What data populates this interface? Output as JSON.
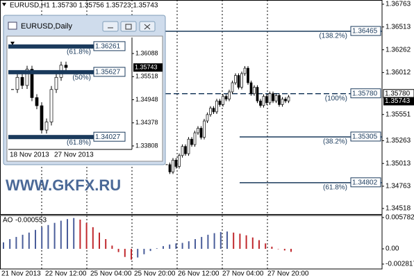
{
  "chart_data": [
    {
      "type": "candlestick",
      "title": "EURUSD,H1 1.35730 1.35756 1.35723 1.35743",
      "values": [
        1.35,
        1.3492,
        1.3505,
        1.3498,
        1.351,
        1.352,
        1.3512,
        1.3528,
        1.3522,
        1.3535,
        1.354,
        1.353,
        1.3548,
        1.3555,
        1.3562,
        1.3558,
        1.357,
        1.3566,
        1.3575,
        1.3572,
        1.358,
        1.359,
        1.3598,
        1.3585,
        1.36,
        1.3606,
        1.359,
        1.3578,
        1.3585,
        1.357,
        1.3565,
        1.3575,
        1.3568,
        1.3578,
        1.357,
        1.3576,
        1.3566,
        1.3572,
        1.357,
        1.35743
      ],
      "ylim": [
        1.34457,
        1.36809
      ],
      "yticks": [
        1.36763,
        1.36513,
        1.36262,
        1.36012,
        1.35551,
        1.35263,
        1.35013,
        1.34763,
        1.34518
      ],
      "levels": [
        {
          "value": 1.36465,
          "pct": "(138.2%)"
        },
        {
          "value": {
            "value": 1.3578,
            "label": "1.35780"
          },
          "pct": "(100%)"
        },
        {
          "value": 1.35305,
          "pct": "(38.2%)"
        },
        {
          "value": 1.34802,
          "pct": "(61.8%)"
        }
      ],
      "current": 1.35743,
      "x_labels": [
        "21 Nov 2013",
        "22 Nov 12:00",
        "25 Nov 04:00",
        "25 Nov 20:00",
        "26 Nov 12:00",
        "27 Nov 04:00",
        "27 Nov 20:00"
      ],
      "color": "#000000",
      "watermark": "WWW.GKFX.RU"
    },
    {
      "type": "bar",
      "title": "AO",
      "current": -0.000553,
      "values": [
        0.0012,
        0.0018,
        0.0022,
        0.0026,
        0.003,
        0.0035,
        0.004,
        0.0044,
        0.0048,
        0.0052,
        0.0055,
        0.0057,
        0.0054,
        0.0048,
        0.004,
        0.003,
        0.0018,
        0.0006,
        -0.0006,
        -0.0015,
        -0.002,
        -0.0016,
        -0.001,
        -0.0004,
        0.0001,
        0.0005,
        0.0008,
        0.001,
        0.0011,
        0.0014,
        0.0018,
        0.0022,
        0.0026,
        0.0029,
        0.0031,
        0.0032,
        0.003,
        0.0028,
        0.0025,
        0.0021,
        0.0016,
        0.001,
        0.0004,
        0.0,
        -0.0003,
        -0.000553
      ],
      "ylim": [
        -0.00372,
        0.00617
      ],
      "yticks": [
        0.005782,
        {
          "value": 0,
          "label": "0.00"
        },
        -0.002817
      ],
      "colors": {
        "up": "#4a5d9a",
        "down": "#c0282d"
      }
    },
    {
      "type": "candlestick",
      "title": "EURUSD,Daily",
      "values": [
        1.352,
        1.355,
        1.353,
        1.357,
        1.35,
        1.348,
        1.342,
        1.344,
        1.352,
        1.355,
        1.358,
        1.35743
      ],
      "ylim": [
        1.33722,
        1.36465
      ],
      "yticks": [
        1.36088,
        1.35518,
        1.34948,
        1.34378,
        1.33808
      ],
      "levels": [
        {
          "value": 1.36261,
          "pct": "(61.8%)"
        },
        {
          "value": 1.35627,
          "pct": "(50%)"
        },
        {
          "value": 1.34027,
          "pct": "(61.8%)"
        }
      ],
      "current": 1.35743,
      "x_labels": [
        "18 Nov 2013",
        "27 Nov 2013"
      ],
      "color": "#000000"
    }
  ]
}
